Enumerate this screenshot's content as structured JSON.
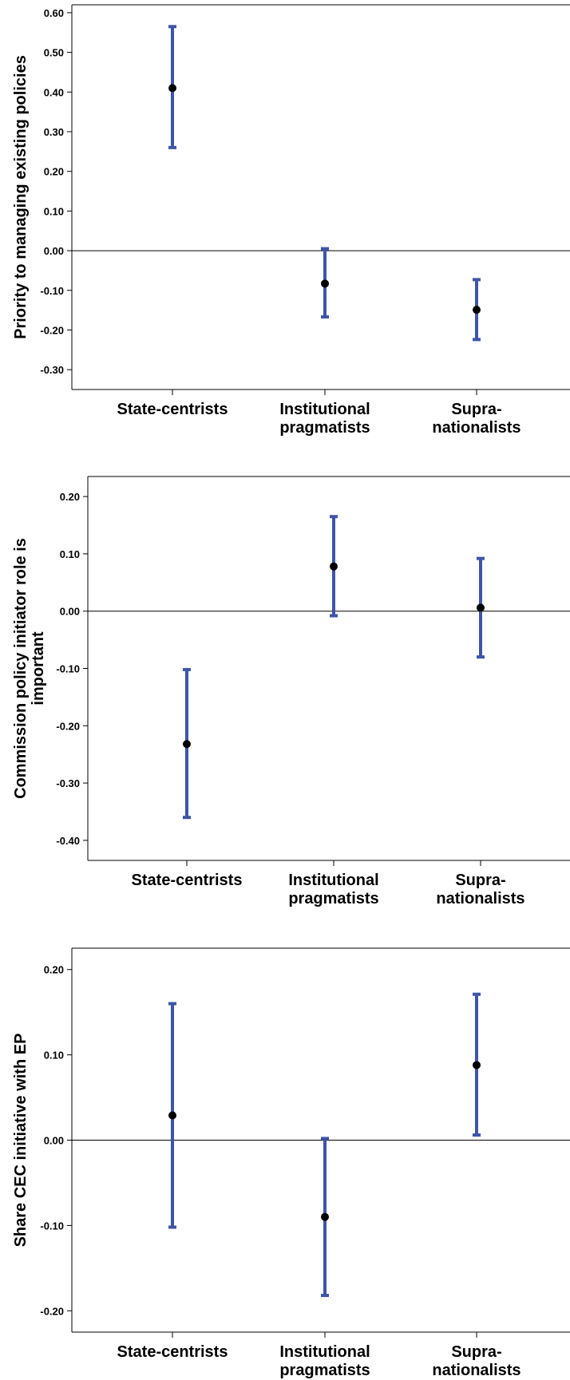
{
  "chart_data": [
    {
      "type": "errorbar",
      "ylabel": [
        "Priority to managing existing policies"
      ],
      "ylim": [
        -0.35,
        0.62
      ],
      "yticks": [
        "0.60",
        "0.50",
        "0.40",
        "0.30",
        "0.20",
        "0.10",
        "0.00",
        "-0.10",
        "-0.20",
        "-0.30"
      ],
      "categories": [
        [
          "State-centrists"
        ],
        [
          "Institutional",
          "pragmatists"
        ],
        [
          "Supra-",
          "nationalists"
        ]
      ],
      "points": [
        {
          "mean": 0.41,
          "lower": 0.26,
          "upper": 0.565
        },
        {
          "mean": -0.083,
          "lower": -0.167,
          "upper": 0.005
        },
        {
          "mean": -0.149,
          "lower": -0.224,
          "upper": -0.073
        }
      ],
      "reference_line": 0
    },
    {
      "type": "errorbar",
      "ylabel": [
        "Commission policy initiator role is",
        "important"
      ],
      "ylim": [
        -0.435,
        0.235
      ],
      "yticks": [
        "0.20",
        "0.10",
        "0.00",
        "-0.10",
        "-0.20",
        "-0.30",
        "-0.40"
      ],
      "categories": [
        [
          "State-centrists"
        ],
        [
          "Institutional",
          "pragmatists"
        ],
        [
          "Supra-",
          "nationalists"
        ]
      ],
      "points": [
        {
          "mean": -0.232,
          "lower": -0.36,
          "upper": -0.102
        },
        {
          "mean": 0.078,
          "lower": -0.008,
          "upper": 0.165
        },
        {
          "mean": 0.006,
          "lower": -0.08,
          "upper": 0.092
        }
      ],
      "reference_line": 0
    },
    {
      "type": "errorbar",
      "ylabel": [
        "Share CEC initiative with EP"
      ],
      "ylim": [
        -0.225,
        0.225
      ],
      "yticks": [
        "0.20",
        "0.10",
        "0.00",
        "-0.10",
        "-0.20"
      ],
      "categories": [
        [
          "State-centrists"
        ],
        [
          "Institutional",
          "pragmatists"
        ],
        [
          "Supra-",
          "nationalists"
        ]
      ],
      "points": [
        {
          "mean": 0.029,
          "lower": -0.102,
          "upper": 0.16
        },
        {
          "mean": -0.09,
          "lower": -0.182,
          "upper": 0.002
        },
        {
          "mean": 0.088,
          "lower": 0.006,
          "upper": 0.171
        }
      ],
      "reference_line": 0
    }
  ],
  "colors": {
    "bar": "#3f55a8",
    "mean": "#000000",
    "axis": "#000000"
  }
}
